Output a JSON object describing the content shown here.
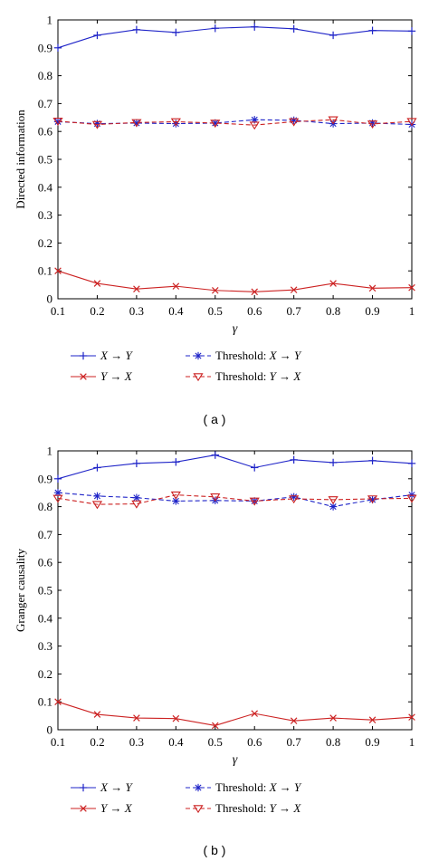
{
  "chart_data": [
    {
      "type": "line",
      "caption": "( a )",
      "xlabel": "γ",
      "ylabel": "Directed information",
      "xlim": [
        0.1,
        1
      ],
      "ylim": [
        0,
        1
      ],
      "x_ticks": [
        "0.1",
        "0.2",
        "0.3",
        "0.4",
        "0.5",
        "0.6",
        "0.7",
        "0.8",
        "0.9",
        "1"
      ],
      "y_ticks": [
        "0",
        "0.1",
        "0.2",
        "0.3",
        "0.4",
        "0.5",
        "0.6",
        "0.7",
        "0.8",
        "0.9",
        "1"
      ],
      "x": [
        0.1,
        0.2,
        0.3,
        0.4,
        0.5,
        0.6,
        0.7,
        0.8,
        0.9,
        1.0
      ],
      "legend_position": "below",
      "series": [
        {
          "name": "X → Y",
          "color": "#1f24c8",
          "line": "solid",
          "marker": "plus",
          "values": [
            0.9,
            0.945,
            0.965,
            0.955,
            0.97,
            0.975,
            0.968,
            0.945,
            0.962,
            0.96
          ]
        },
        {
          "name": "Y → X",
          "color": "#cc2222",
          "line": "solid",
          "marker": "x",
          "values": [
            0.1,
            0.055,
            0.035,
            0.045,
            0.03,
            0.025,
            0.032,
            0.055,
            0.038,
            0.04
          ]
        },
        {
          "name": "Threshold: X → Y",
          "color": "#1f24c8",
          "line": "dashed",
          "marker": "star",
          "values": [
            0.635,
            0.628,
            0.63,
            0.628,
            0.63,
            0.642,
            0.64,
            0.628,
            0.63,
            0.625
          ]
        },
        {
          "name": "Threshold: Y → X",
          "color": "#cc2222",
          "line": "dashed",
          "marker": "triangle-down",
          "values": [
            0.637,
            0.625,
            0.632,
            0.635,
            0.63,
            0.623,
            0.635,
            0.642,
            0.627,
            0.636
          ]
        }
      ]
    },
    {
      "type": "line",
      "caption": "( b )",
      "xlabel": "γ",
      "ylabel": "Granger causality",
      "xlim": [
        0.1,
        1
      ],
      "ylim": [
        0,
        1
      ],
      "x_ticks": [
        "0.1",
        "0.2",
        "0.3",
        "0.4",
        "0.5",
        "0.6",
        "0.7",
        "0.8",
        "0.9",
        "1"
      ],
      "y_ticks": [
        "0",
        "0.1",
        "0.2",
        "0.3",
        "0.4",
        "0.5",
        "0.6",
        "0.7",
        "0.8",
        "0.9",
        "1"
      ],
      "x": [
        0.1,
        0.2,
        0.3,
        0.4,
        0.5,
        0.6,
        0.7,
        0.8,
        0.9,
        1.0
      ],
      "legend_position": "below",
      "series": [
        {
          "name": "X → Y",
          "color": "#1f24c8",
          "line": "solid",
          "marker": "plus",
          "values": [
            0.9,
            0.94,
            0.955,
            0.96,
            0.985,
            0.94,
            0.968,
            0.958,
            0.965,
            0.955
          ]
        },
        {
          "name": "Y → X",
          "color": "#cc2222",
          "line": "solid",
          "marker": "x",
          "values": [
            0.1,
            0.055,
            0.042,
            0.04,
            0.015,
            0.058,
            0.032,
            0.042,
            0.035,
            0.045
          ]
        },
        {
          "name": "Threshold: X → Y",
          "color": "#1f24c8",
          "line": "dashed",
          "marker": "star",
          "values": [
            0.85,
            0.838,
            0.832,
            0.82,
            0.822,
            0.82,
            0.835,
            0.8,
            0.825,
            0.842
          ]
        },
        {
          "name": "Threshold: Y → X",
          "color": "#cc2222",
          "line": "dashed",
          "marker": "triangle-down",
          "values": [
            0.83,
            0.808,
            0.81,
            0.842,
            0.835,
            0.82,
            0.828,
            0.825,
            0.828,
            0.83
          ]
        }
      ]
    }
  ]
}
